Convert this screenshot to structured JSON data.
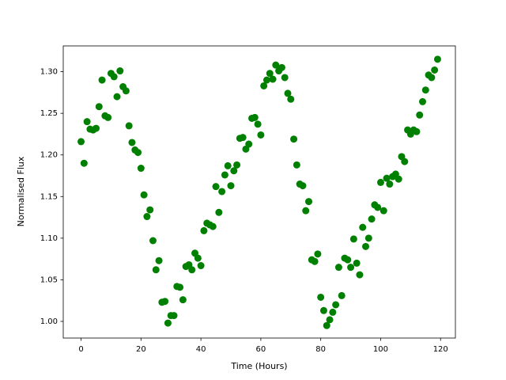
{
  "chart_data": {
    "type": "scatter",
    "xlabel": "Time (Hours)",
    "ylabel": "Normalised Flux",
    "color": "#008000",
    "x": [
      0,
      1,
      2,
      3,
      4,
      5,
      6,
      7,
      8,
      9,
      10,
      11,
      12,
      13,
      14,
      15,
      16,
      17,
      18,
      19,
      20,
      21,
      22,
      23,
      24,
      25,
      26,
      27,
      28,
      29,
      30,
      31,
      32,
      33,
      34,
      35,
      36,
      37,
      38,
      39,
      40,
      41,
      42,
      43,
      44,
      45,
      46,
      47,
      48,
      49,
      50,
      51,
      52,
      53,
      54,
      55,
      56,
      57,
      58,
      59,
      60,
      61,
      62,
      63,
      64,
      65,
      66,
      67,
      68,
      69,
      70,
      71,
      72,
      73,
      74,
      75,
      76,
      77,
      78,
      79,
      80,
      81,
      82,
      83,
      84,
      85,
      86,
      87,
      88,
      89,
      90,
      91,
      92,
      93,
      94,
      95,
      96,
      97,
      98,
      99,
      100,
      101,
      102,
      103,
      104,
      105,
      106,
      107,
      108,
      109,
      110,
      111,
      112,
      113,
      114,
      115,
      116,
      117,
      118,
      119
    ],
    "values": [
      1.216,
      1.19,
      1.24,
      1.231,
      1.23,
      1.232,
      1.258,
      1.29,
      1.247,
      1.245,
      1.298,
      1.294,
      1.27,
      1.301,
      1.282,
      1.277,
      1.235,
      1.215,
      1.206,
      1.203,
      1.184,
      1.152,
      1.126,
      1.134,
      1.097,
      1.062,
      1.073,
      1.023,
      1.024,
      0.998,
      1.007,
      1.007,
      1.042,
      1.041,
      1.026,
      1.066,
      1.068,
      1.062,
      1.082,
      1.076,
      1.067,
      1.109,
      1.118,
      1.116,
      1.114,
      1.162,
      1.131,
      1.156,
      1.176,
      1.187,
      1.163,
      1.181,
      1.188,
      1.22,
      1.221,
      1.207,
      1.213,
      1.244,
      1.245,
      1.237,
      1.224,
      1.283,
      1.29,
      1.298,
      1.291,
      1.308,
      1.301,
      1.305,
      1.293,
      1.274,
      1.267,
      1.219,
      1.188,
      1.165,
      1.163,
      1.133,
      1.144,
      1.074,
      1.072,
      1.081,
      1.029,
      1.013,
      0.995,
      1.002,
      1.011,
      1.02,
      1.065,
      1.031,
      1.076,
      1.074,
      1.065,
      1.099,
      1.07,
      1.056,
      1.113,
      1.09,
      1.1,
      1.123,
      1.14,
      1.137,
      1.167,
      1.133,
      1.172,
      1.165,
      1.174,
      1.177,
      1.171,
      1.198,
      1.192,
      1.23,
      1.225,
      1.23,
      1.228,
      1.248,
      1.264,
      1.278,
      1.296,
      1.293,
      1.302,
      1.315
    ],
    "xlim": [
      -5.95,
      124.95
    ],
    "ylim": [
      0.98,
      1.331
    ],
    "xticks": [
      0,
      20,
      40,
      60,
      80,
      100,
      120
    ],
    "yticks": [
      {
        "value": 1.0,
        "label": "1.00"
      },
      1.05,
      {
        "value": 1.1,
        "label": "1.10"
      },
      1.15,
      {
        "value": 1.2,
        "label": "1.20"
      },
      1.25,
      {
        "value": 1.3,
        "label": "1.30"
      }
    ]
  }
}
